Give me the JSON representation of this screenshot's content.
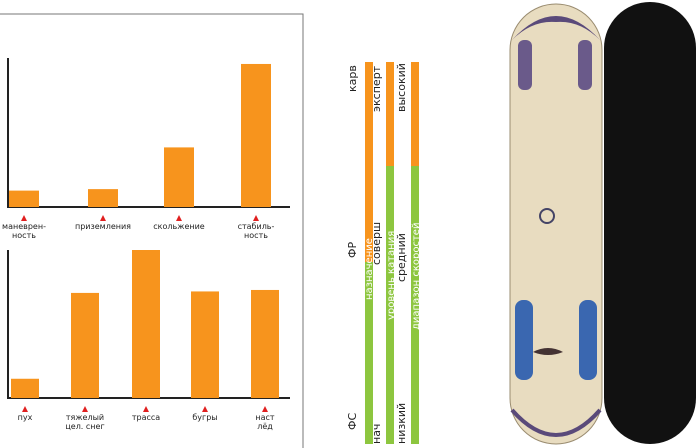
{
  "chart_data": [
    {
      "type": "bar",
      "categories": [
        "маневрен-\nность",
        "приземления",
        "скольжение",
        "стабиль-\nность"
      ],
      "values": [
        11,
        12,
        40,
        96
      ],
      "ylim": [
        0,
        100
      ],
      "color": "#f7941d"
    },
    {
      "type": "bar",
      "categories": [
        "пух",
        "тяжелый\nцел. снег",
        "трасса",
        "бугры",
        "наст\nлёд"
      ],
      "values": [
        13,
        71,
        100,
        72,
        73
      ],
      "ylim": [
        0,
        100
      ],
      "color": "#f7941d"
    }
  ],
  "scales": [
    {
      "name": "назначение",
      "top": "карв",
      "middle": "ФР",
      "bottom": "ФС"
    },
    {
      "name": "уровень катания",
      "top": "эксперт",
      "middle": "соверш",
      "bottom": "нач"
    },
    {
      "name": "диапазон скоростей",
      "top": "высокий",
      "middle": "средний",
      "bottom": "низкий"
    }
  ]
}
